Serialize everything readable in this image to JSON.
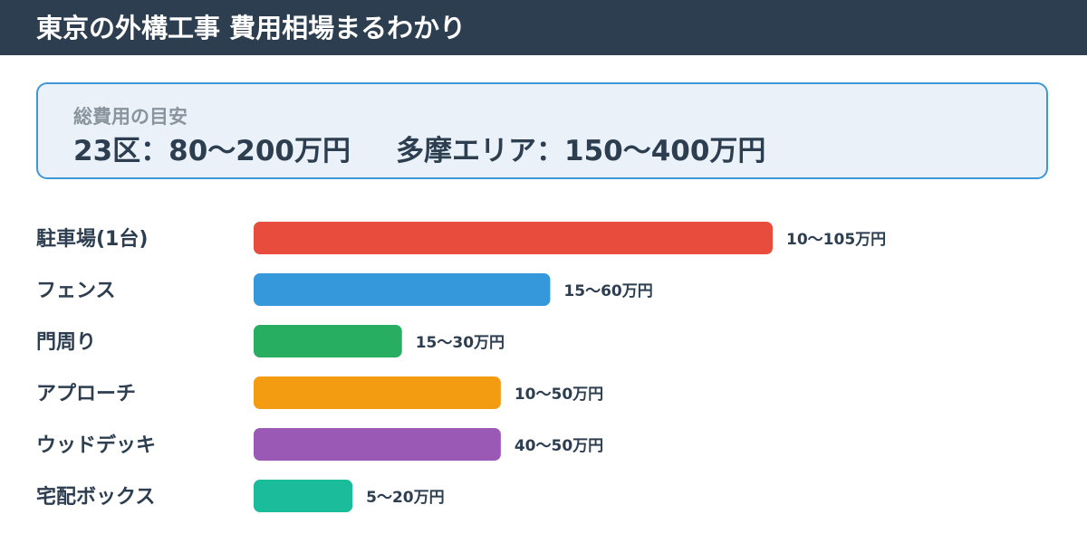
{
  "header": {
    "title": "東京の外構工事 費用相場まるわかり"
  },
  "summary": {
    "label": "総費用の目安",
    "ku23": "23区：80〜200万円",
    "tama": "多摩エリア：150〜400万円"
  },
  "chart_data": {
    "type": "bar",
    "orientation": "horizontal",
    "categories": [
      "駐車場(1台)",
      "フェンス",
      "門周り",
      "アプローチ",
      "ウッドデッキ",
      "宅配ボックス"
    ],
    "ranges": [
      [
        10,
        105
      ],
      [
        15,
        60
      ],
      [
        15,
        30
      ],
      [
        10,
        50
      ],
      [
        40,
        50
      ],
      [
        5,
        20
      ]
    ],
    "values": [
      105,
      60,
      30,
      50,
      50,
      20
    ],
    "value_labels": [
      "10〜105万円",
      "15〜60万円",
      "15〜30万円",
      "10〜50万円",
      "40〜50万円",
      "5〜20万円"
    ],
    "colors": [
      "#e74c3c",
      "#3498db",
      "#27ae60",
      "#f39c12",
      "#9b59b6",
      "#1abc9c"
    ],
    "xlim": [
      0,
      105
    ],
    "grid": false,
    "legend": "none"
  }
}
